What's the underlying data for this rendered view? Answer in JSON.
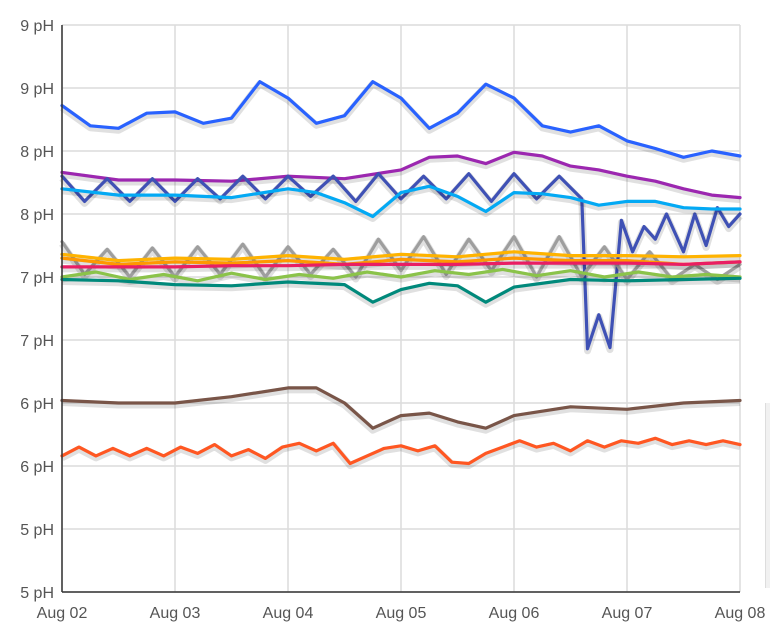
{
  "chart_data": {
    "type": "line",
    "title": "",
    "xlabel": "",
    "ylabel": "",
    "x_ticks": [
      "Aug 02",
      "Aug 03",
      "Aug 04",
      "Aug 05",
      "Aug 06",
      "Aug 07",
      "Aug 08"
    ],
    "y_ticks": [
      "9 pH",
      "9 pH",
      "8 pH",
      "8 pH",
      "7 pH",
      "7 pH",
      "6 pH",
      "6 pH",
      "5 pH",
      "5 pH"
    ],
    "xlim": [
      0,
      6
    ],
    "ylim": [
      5.0,
      9.5
    ],
    "grid": true,
    "legend": "none",
    "series": [
      {
        "color": "#2962ff",
        "x": [
          0,
          0.25,
          0.5,
          0.75,
          1,
          1.25,
          1.5,
          1.75,
          2,
          2.25,
          2.5,
          2.75,
          3,
          3.25,
          3.5,
          3.75,
          4,
          4.25,
          4.5,
          4.75,
          5,
          5.25,
          5.5,
          5.75,
          6
        ],
        "values": [
          8.86,
          8.7,
          8.68,
          8.8,
          8.81,
          8.72,
          8.76,
          9.05,
          8.92,
          8.72,
          8.78,
          9.05,
          8.92,
          8.68,
          8.8,
          9.03,
          8.92,
          8.7,
          8.65,
          8.7,
          8.58,
          8.52,
          8.45,
          8.5,
          8.46
        ]
      },
      {
        "color": "#9c27b0",
        "x": [
          0,
          0.5,
          1,
          1.5,
          2,
          2.5,
          3,
          3.25,
          3.5,
          3.75,
          4,
          4.25,
          4.5,
          4.75,
          5,
          5.25,
          5.5,
          5.75,
          6
        ],
        "values": [
          8.33,
          8.27,
          8.27,
          8.26,
          8.3,
          8.28,
          8.35,
          8.45,
          8.46,
          8.4,
          8.49,
          8.46,
          8.38,
          8.35,
          8.3,
          8.26,
          8.2,
          8.15,
          8.13
        ]
      },
      {
        "color": "#3f51b5",
        "x": [
          0,
          0.2,
          0.4,
          0.6,
          0.8,
          1,
          1.2,
          1.4,
          1.6,
          1.8,
          2,
          2.2,
          2.4,
          2.6,
          2.8,
          3,
          3.2,
          3.4,
          3.6,
          3.8,
          4,
          4.2,
          4.4,
          4.6,
          4.65,
          4.75,
          4.85,
          4.95,
          5.05,
          5.15,
          5.25,
          5.35,
          5.5,
          5.6,
          5.7,
          5.8,
          5.9,
          6
        ],
        "values": [
          8.3,
          8.1,
          8.28,
          8.1,
          8.28,
          8.1,
          8.28,
          8.12,
          8.3,
          8.12,
          8.3,
          8.14,
          8.3,
          8.1,
          8.32,
          8.12,
          8.3,
          8.12,
          8.32,
          8.1,
          8.32,
          8.12,
          8.3,
          8.12,
          6.93,
          7.2,
          6.94,
          7.95,
          7.7,
          7.9,
          7.8,
          8.0,
          7.7,
          8.0,
          7.75,
          8.05,
          7.9,
          8.0
        ]
      },
      {
        "color": "#03a9f4",
        "x": [
          0,
          0.5,
          1,
          1.5,
          2,
          2.25,
          2.5,
          2.75,
          3,
          3.25,
          3.5,
          3.75,
          4,
          4.25,
          4.5,
          4.75,
          5,
          5.25,
          5.5,
          5.75,
          6
        ],
        "values": [
          8.2,
          8.15,
          8.15,
          8.13,
          8.2,
          8.17,
          8.09,
          7.98,
          8.17,
          8.22,
          8.14,
          8.02,
          8.17,
          8.16,
          8.13,
          8.07,
          8.1,
          8.1,
          8.05,
          8.04,
          8.04
        ]
      },
      {
        "color": "#9e9e9e",
        "x": [
          0,
          0.2,
          0.4,
          0.6,
          0.8,
          1,
          1.2,
          1.4,
          1.6,
          1.8,
          2,
          2.2,
          2.4,
          2.6,
          2.8,
          3,
          3.2,
          3.4,
          3.6,
          3.8,
          4,
          4.2,
          4.4,
          4.6,
          4.8,
          5,
          5.2,
          5.4,
          5.6,
          5.8,
          6
        ],
        "values": [
          7.78,
          7.52,
          7.72,
          7.5,
          7.73,
          7.5,
          7.74,
          7.52,
          7.76,
          7.5,
          7.74,
          7.52,
          7.72,
          7.5,
          7.8,
          7.55,
          7.82,
          7.52,
          7.8,
          7.55,
          7.82,
          7.5,
          7.82,
          7.5,
          7.74,
          7.48,
          7.7,
          7.48,
          7.6,
          7.48,
          7.6
        ]
      },
      {
        "color": "#ffb300",
        "x": [
          0,
          0.5,
          1,
          1.5,
          2,
          2.5,
          3,
          3.5,
          4,
          4.5,
          5,
          5.5,
          6
        ],
        "values": [
          7.68,
          7.63,
          7.65,
          7.64,
          7.67,
          7.64,
          7.68,
          7.66,
          7.7,
          7.67,
          7.67,
          7.66,
          7.67
        ]
      },
      {
        "color": "#ff9800",
        "x": [
          0,
          0.5,
          1,
          1.5,
          2,
          2.5,
          3,
          3.5,
          4,
          4.5,
          5,
          5.5,
          6
        ],
        "values": [
          7.65,
          7.6,
          7.62,
          7.61,
          7.63,
          7.6,
          7.64,
          7.62,
          7.65,
          7.63,
          7.63,
          7.6,
          7.62
        ]
      },
      {
        "color": "#e91e63",
        "x": [
          0,
          0.5,
          1,
          1.5,
          2,
          2.5,
          3,
          3.5,
          4,
          4.5,
          5,
          5.5,
          6
        ],
        "values": [
          7.58,
          7.58,
          7.58,
          7.59,
          7.59,
          7.6,
          7.6,
          7.6,
          7.61,
          7.61,
          7.61,
          7.6,
          7.62
        ]
      },
      {
        "color": "#8bc34a",
        "x": [
          0,
          0.3,
          0.6,
          0.9,
          1.2,
          1.5,
          1.8,
          2.1,
          2.4,
          2.7,
          3,
          3.3,
          3.6,
          3.9,
          4.2,
          4.5,
          4.8,
          5.1,
          5.4,
          5.7,
          6
        ],
        "values": [
          7.5,
          7.54,
          7.48,
          7.52,
          7.47,
          7.53,
          7.48,
          7.52,
          7.49,
          7.54,
          7.5,
          7.55,
          7.52,
          7.56,
          7.51,
          7.55,
          7.5,
          7.54,
          7.5,
          7.52,
          7.5
        ]
      },
      {
        "color": "#00897b",
        "x": [
          0,
          0.5,
          1,
          1.5,
          2,
          2.5,
          2.75,
          3,
          3.25,
          3.5,
          3.75,
          4,
          4.5,
          5,
          5.5,
          6
        ],
        "values": [
          7.48,
          7.47,
          7.44,
          7.43,
          7.46,
          7.44,
          7.3,
          7.4,
          7.45,
          7.43,
          7.3,
          7.42,
          7.48,
          7.47,
          7.48,
          7.49
        ]
      },
      {
        "color": "#795548",
        "x": [
          0,
          0.5,
          1,
          1.5,
          2,
          2.25,
          2.5,
          2.75,
          3,
          3.25,
          3.5,
          3.75,
          4,
          4.5,
          5,
          5.5,
          6
        ],
        "values": [
          6.52,
          6.5,
          6.5,
          6.55,
          6.62,
          6.62,
          6.5,
          6.3,
          6.4,
          6.42,
          6.35,
          6.3,
          6.4,
          6.47,
          6.45,
          6.5,
          6.52
        ]
      },
      {
        "color": "#ff5722",
        "x": [
          0,
          0.15,
          0.3,
          0.45,
          0.6,
          0.75,
          0.9,
          1.05,
          1.2,
          1.35,
          1.5,
          1.65,
          1.8,
          1.95,
          2.1,
          2.25,
          2.4,
          2.55,
          2.7,
          2.85,
          3,
          3.15,
          3.3,
          3.45,
          3.6,
          3.75,
          3.9,
          4.05,
          4.2,
          4.35,
          4.5,
          4.65,
          4.8,
          4.95,
          5.1,
          5.25,
          5.4,
          5.55,
          5.7,
          5.85,
          6
        ],
        "values": [
          6.08,
          6.15,
          6.08,
          6.14,
          6.08,
          6.14,
          6.08,
          6.15,
          6.1,
          6.17,
          6.08,
          6.13,
          6.06,
          6.15,
          6.18,
          6.12,
          6.18,
          6.02,
          6.08,
          6.14,
          6.16,
          6.12,
          6.16,
          6.03,
          6.02,
          6.1,
          6.15,
          6.2,
          6.15,
          6.18,
          6.12,
          6.2,
          6.15,
          6.2,
          6.18,
          6.22,
          6.17,
          6.2,
          6.17,
          6.2,
          6.17
        ]
      }
    ]
  }
}
